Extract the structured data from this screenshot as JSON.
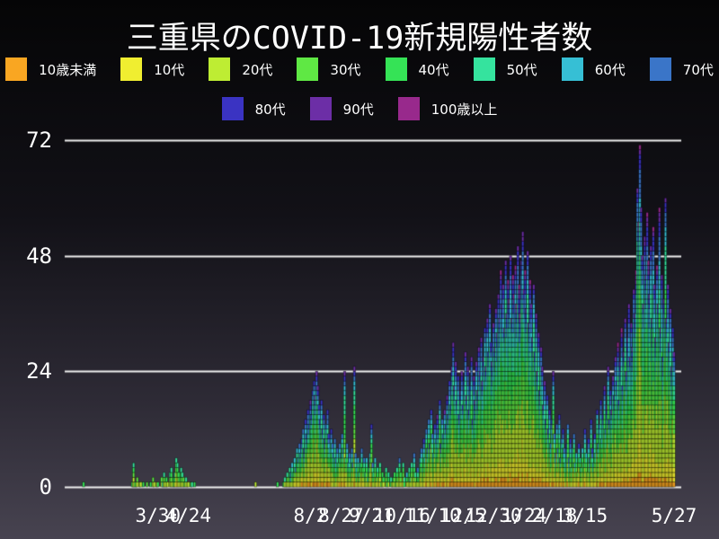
{
  "title": "三重県のCOVID-19新規陽性者数",
  "chart_data": {
    "type": "bar",
    "stacked": true,
    "title": "三重県のCOVID-19新規陽性者数",
    "xlabel": "",
    "ylabel": "",
    "y_ticks": [
      0,
      24,
      48,
      72
    ],
    "ylim": [
      0,
      72
    ],
    "grid": "horizontal",
    "gridline_color": "#f2f2f2",
    "legend_position": "top-two-rows",
    "start_date": "2020-01-29",
    "end_date": "2021-05-27",
    "x_ticks": [
      {
        "label": "3/30",
        "day_index": 61
      },
      {
        "label": "4/24",
        "day_index": 86
      },
      {
        "label": "8/2",
        "day_index": 186
      },
      {
        "label": "8/27",
        "day_index": 211
      },
      {
        "label": "9/21",
        "day_index": 236
      },
      {
        "label": "10/16",
        "day_index": 261
      },
      {
        "label": "11/10",
        "day_index": 286
      },
      {
        "label": "12/5",
        "day_index": 311
      },
      {
        "label": "12/30",
        "day_index": 336
      },
      {
        "label": "1/24",
        "day_index": 361
      },
      {
        "label": "2/18",
        "day_index": 386
      },
      {
        "label": "3/15",
        "day_index": 411
      },
      {
        "label": "5/27",
        "day_index": 484
      }
    ],
    "age_groups": [
      {
        "label": "10歳未満",
        "color": "#F9A622",
        "share": 0.045
      },
      {
        "label": "10代",
        "color": "#F0EE30",
        "share": 0.09
      },
      {
        "label": "20代",
        "color": "#BEED33",
        "share": 0.21
      },
      {
        "label": "30代",
        "color": "#5FE844",
        "share": 0.15
      },
      {
        "label": "40代",
        "color": "#35E356",
        "share": 0.14
      },
      {
        "label": "50代",
        "color": "#35E39E",
        "share": 0.13
      },
      {
        "label": "60代",
        "color": "#36BFD5",
        "share": 0.085
      },
      {
        "label": "70代",
        "color": "#3A75C8",
        "share": 0.07
      },
      {
        "label": "80代",
        "color": "#3A33C2",
        "share": 0.045
      },
      {
        "label": "90代",
        "color": "#6C2EA6",
        "share": 0.025
      },
      {
        "label": "100歳以上",
        "color": "#98298C",
        "share": 0.01
      }
    ],
    "daily_totals": [
      1,
      0,
      0,
      0,
      0,
      0,
      0,
      0,
      0,
      0,
      0,
      0,
      0,
      0,
      0,
      0,
      0,
      0,
      0,
      0,
      0,
      0,
      0,
      0,
      0,
      0,
      0,
      0,
      0,
      0,
      0,
      0,
      0,
      0,
      0,
      0,
      0,
      0,
      0,
      0,
      1,
      5,
      1,
      1,
      2,
      0,
      1,
      1,
      0,
      1,
      0,
      0,
      1,
      0,
      0,
      1,
      0,
      2,
      1,
      0,
      1,
      1,
      0,
      0,
      2,
      1,
      3,
      1,
      2,
      1,
      0,
      3,
      4,
      1,
      2,
      3,
      6,
      5,
      3,
      2,
      4,
      3,
      2,
      1,
      2,
      1,
      1,
      0,
      1,
      1,
      0,
      1,
      0,
      0,
      0,
      0,
      0,
      0,
      0,
      0,
      0,
      0,
      0,
      0,
      0,
      0,
      0,
      0,
      0,
      0,
      0,
      0,
      0,
      0,
      0,
      0,
      0,
      0,
      0,
      0,
      0,
      0,
      0,
      0,
      0,
      0,
      0,
      0,
      0,
      0,
      0,
      0,
      0,
      0,
      0,
      0,
      0,
      0,
      0,
      0,
      0,
      1,
      0,
      0,
      0,
      0,
      0,
      0,
      0,
      0,
      0,
      0,
      0,
      0,
      0,
      0,
      0,
      0,
      0,
      1,
      0,
      0,
      0,
      0,
      1,
      2,
      1,
      3,
      2,
      4,
      3,
      5,
      3,
      6,
      4,
      8,
      6,
      9,
      7,
      10,
      12,
      8,
      14,
      11,
      16,
      13,
      18,
      15,
      20,
      22,
      19,
      24,
      21,
      17,
      14,
      18,
      12,
      15,
      10,
      13,
      16,
      11,
      8,
      12,
      9,
      7,
      10,
      6,
      8,
      5,
      9,
      7,
      11,
      8,
      24,
      6,
      9,
      5,
      7,
      4,
      8,
      5,
      25,
      7,
      4,
      6,
      3,
      5,
      8,
      4,
      6,
      3,
      6,
      2,
      4,
      7,
      13,
      5,
      3,
      6,
      2,
      4,
      2,
      5,
      1,
      3,
      2,
      0,
      4,
      1,
      3,
      0,
      2,
      1,
      2,
      3,
      1,
      4,
      2,
      6,
      3,
      1,
      5,
      2,
      0,
      3,
      1,
      4,
      2,
      5,
      2,
      7,
      3,
      1,
      4,
      2,
      6,
      8,
      4,
      10,
      6,
      12,
      8,
      14,
      9,
      16,
      11,
      7,
      13,
      10,
      15,
      12,
      18,
      9,
      14,
      11,
      16,
      13,
      19,
      15,
      22,
      17,
      25,
      30,
      21,
      26,
      18,
      23,
      15,
      20,
      24,
      17,
      22,
      28,
      19,
      25,
      16,
      21,
      27,
      14,
      23,
      18,
      26,
      20,
      29,
      24,
      31,
      22,
      27,
      33,
      25,
      35,
      28,
      38,
      30,
      26,
      34,
      29,
      37,
      32,
      40,
      35,
      45,
      38,
      42,
      33,
      47,
      36,
      43,
      39,
      48,
      35,
      44,
      40,
      46,
      38,
      50,
      42,
      36,
      47,
      53,
      41,
      45,
      37,
      49,
      34,
      43,
      38,
      31,
      42,
      28,
      36,
      24,
      32,
      20,
      29,
      25,
      17,
      22,
      14,
      19,
      12,
      16,
      9,
      14,
      24,
      11,
      7,
      13,
      8,
      15,
      6,
      10,
      12,
      8,
      5,
      9,
      13,
      6,
      10,
      4,
      8,
      11,
      5,
      7,
      3,
      9,
      6,
      4,
      8,
      5,
      12,
      7,
      3,
      10,
      6,
      14,
      8,
      5,
      11,
      7,
      16,
      9,
      13,
      18,
      10,
      15,
      21,
      12,
      17,
      25,
      14,
      20,
      16,
      23,
      19,
      27,
      22,
      30,
      18,
      26,
      33,
      21,
      28,
      35,
      24,
      31,
      38,
      27,
      34,
      29,
      41,
      36,
      45,
      62,
      55,
      71,
      58,
      48,
      38,
      52,
      44,
      57,
      47,
      40,
      50,
      35,
      54,
      42,
      31,
      46,
      38,
      58,
      33,
      44,
      27,
      39,
      60,
      35,
      42,
      30,
      37,
      25,
      33,
      28
    ]
  }
}
